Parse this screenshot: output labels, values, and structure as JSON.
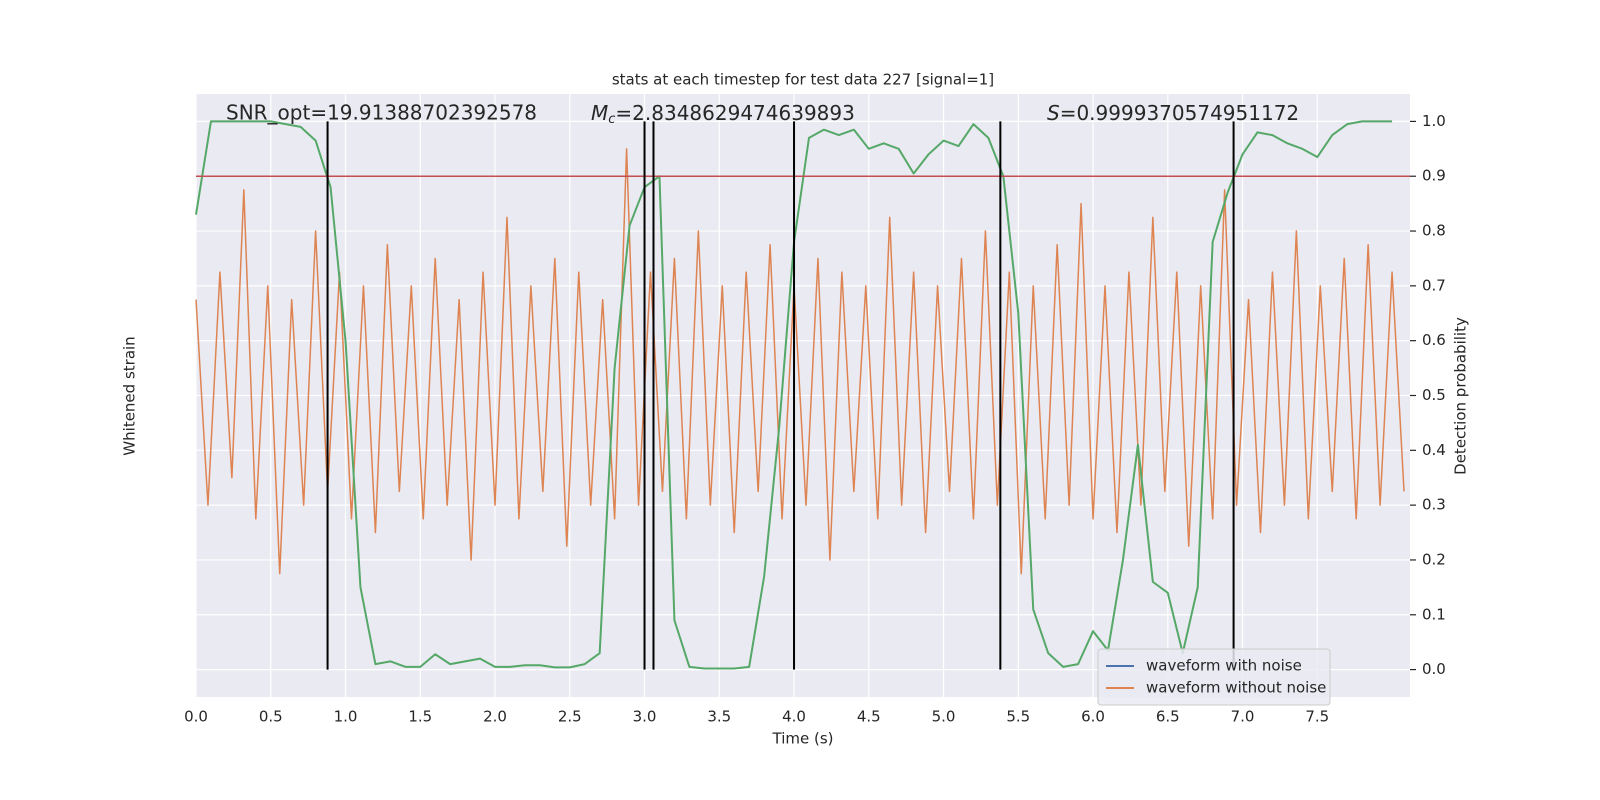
{
  "chart_data": {
    "type": "line",
    "title": "stats at each timestep for test data 227 [signal=1]",
    "xlabel": "Time (s)",
    "ylabel": "Whitened strain",
    "y2label": "Detection probability",
    "xlim": [
      0,
      8.12
    ],
    "ylim": [
      -2.2,
      2.2
    ],
    "y2lim": [
      -0.05,
      1.05
    ],
    "xticks": [
      {
        "value": 0,
        "label": "0.0"
      },
      0.5,
      {
        "value": 1,
        "label": "1.0"
      },
      1.5,
      {
        "value": 2,
        "label": "2.0"
      },
      2.5,
      {
        "value": 3,
        "label": "3.0"
      },
      3.5,
      {
        "value": 4,
        "label": "4.0"
      },
      4.5,
      {
        "value": 5,
        "label": "5.0"
      },
      5.5,
      {
        "value": 6,
        "label": "6.0"
      },
      6.5,
      {
        "value": 7,
        "label": "7.0"
      },
      7.5
    ],
    "y2ticks": [
      {
        "value": 0,
        "label": "0.0"
      },
      0.1,
      0.2,
      0.3,
      0.4,
      0.5,
      0.6,
      0.7,
      0.8,
      0.9,
      {
        "value": 1,
        "label": "1.0"
      }
    ],
    "grid": true,
    "legend": "lower right",
    "series": [
      {
        "name": "waveform with noise",
        "color": "#4c72b0"
      },
      {
        "name": "waveform without noise",
        "color": "#dd8452",
        "x": [
          0,
          0.08,
          0.16,
          0.24,
          0.32,
          0.4,
          0.48,
          0.56,
          0.64,
          0.72,
          0.8,
          0.88,
          0.96,
          1.04,
          1.12,
          1.2,
          1.28,
          1.36,
          1.44,
          1.52,
          1.6,
          1.68,
          1.76,
          1.84,
          1.92,
          2,
          2.08,
          2.16,
          2.24,
          2.32,
          2.4,
          2.48,
          2.56,
          2.64,
          2.72,
          2.8,
          2.88,
          2.96,
          3.04,
          3.12,
          3.2,
          3.28,
          3.36,
          3.44,
          3.52,
          3.6,
          3.68,
          3.76,
          3.84,
          3.92,
          4,
          4.08,
          4.16,
          4.24,
          4.32,
          4.4,
          4.48,
          4.56,
          4.64,
          4.72,
          4.8,
          4.88,
          4.96,
          5.04,
          5.12,
          5.2,
          5.28,
          5.36,
          5.44,
          5.52,
          5.6,
          5.68,
          5.76,
          5.84,
          5.92,
          6,
          6.08,
          6.16,
          6.24,
          6.32,
          6.4,
          6.48,
          6.56,
          6.64,
          6.72,
          6.8,
          6.88,
          6.96,
          7.04,
          7.12,
          7.2,
          7.28,
          7.36,
          7.44,
          7.52,
          7.6,
          7.68,
          7.76,
          7.84,
          7.92,
          8,
          8.08
        ],
        "values": [
          0.7,
          -0.8,
          0.9,
          -0.6,
          1.5,
          -0.9,
          0.8,
          -1.3,
          0.7,
          -0.8,
          1.2,
          -0.7,
          0.9,
          -0.9,
          0.8,
          -1.0,
          1.1,
          -0.7,
          0.8,
          -0.9,
          1.0,
          -0.8,
          0.7,
          -1.2,
          0.9,
          -0.8,
          1.3,
          -0.9,
          0.8,
          -0.7,
          1.0,
          -1.1,
          0.9,
          -0.8,
          0.7,
          -0.9,
          1.8,
          -0.8,
          0.9,
          -0.7,
          1.0,
          -0.9,
          1.2,
          -0.8,
          0.8,
          -1.0,
          0.9,
          -0.7,
          1.1,
          -0.9,
          0.8,
          -0.8,
          1.0,
          -1.2,
          0.9,
          -0.7,
          0.8,
          -0.9,
          1.3,
          -0.8,
          0.9,
          -1.0,
          0.8,
          -0.7,
          1.0,
          -0.9,
          1.2,
          -0.8,
          0.9,
          -1.3,
          0.8,
          -0.9,
          1.1,
          -0.8,
          1.4,
          -0.9,
          0.8,
          -1.0,
          0.9,
          -0.8,
          1.3,
          -0.7,
          0.9,
          -1.1,
          0.8,
          -0.9,
          1.5,
          -0.8,
          0.7,
          -1.0,
          0.9,
          -0.8,
          1.2,
          -0.9,
          0.8,
          -0.7,
          1.0,
          -0.9,
          1.1,
          -0.8,
          0.9,
          -0.7
        ]
      },
      {
        "axis": "y2",
        "color": "#55a868",
        "x": [
          0,
          0.1,
          0.2,
          0.3,
          0.4,
          0.5,
          0.6,
          0.7,
          0.8,
          0.9,
          1,
          1.1,
          1.2,
          1.3,
          1.4,
          1.5,
          1.6,
          1.7,
          1.8,
          1.9,
          2,
          2.1,
          2.2,
          2.3,
          2.4,
          2.5,
          2.6,
          2.7,
          2.8,
          2.9,
          3,
          3.1,
          3.2,
          3.3,
          3.4,
          3.5,
          3.6,
          3.7,
          3.8,
          3.9,
          4,
          4.1,
          4.2,
          4.3,
          4.4,
          4.5,
          4.6,
          4.7,
          4.8,
          4.9,
          5,
          5.1,
          5.2,
          5.3,
          5.4,
          5.5,
          5.6,
          5.7,
          5.8,
          5.9,
          6,
          6.1,
          6.2,
          6.3,
          6.4,
          6.5,
          6.6,
          6.7,
          6.8,
          6.9,
          7,
          7.1,
          7.2,
          7.3,
          7.4,
          7.5,
          7.6,
          7.7,
          7.8,
          7.9,
          8
        ],
        "values": [
          0.83,
          1.0,
          1.0,
          1.0,
          1.0,
          1.0,
          0.995,
          0.99,
          0.965,
          0.88,
          0.6,
          0.15,
          0.01,
          0.015,
          0.005,
          0.005,
          0.028,
          0.01,
          0.015,
          0.02,
          0.005,
          0.005,
          0.008,
          0.008,
          0.004,
          0.004,
          0.01,
          0.03,
          0.55,
          0.81,
          0.88,
          0.9,
          0.09,
          0.005,
          0.002,
          0.002,
          0.002,
          0.005,
          0.17,
          0.44,
          0.78,
          0.97,
          0.985,
          0.975,
          0.985,
          0.95,
          0.96,
          0.95,
          0.905,
          0.94,
          0.965,
          0.955,
          0.995,
          0.97,
          0.9,
          0.65,
          0.11,
          0.03,
          0.005,
          0.01,
          0.07,
          0.035,
          0.2,
          0.41,
          0.16,
          0.14,
          0.03,
          0.15,
          0.78,
          0.87,
          0.94,
          0.98,
          0.975,
          0.96,
          0.95,
          0.935,
          0.975,
          0.995,
          1.0,
          1.0,
          1.0
        ]
      }
    ],
    "hlines": [
      {
        "value": 0.9,
        "axis": "y2",
        "color": "#c44e52"
      }
    ],
    "vlines": {
      "color": "#000000",
      "x": [
        0.88,
        3.0,
        3.06,
        4.0,
        5.38,
        6.94
      ],
      "y2range": [
        0,
        1
      ]
    },
    "annotations": [
      {
        "text": "SNR_opt=19.91388702392578"
      },
      {
        "symbol": "M",
        "subscript": "c",
        "text": "=2.8348629474639893"
      },
      {
        "symbol": "S",
        "text": "=0.9999370574951172"
      }
    ]
  }
}
